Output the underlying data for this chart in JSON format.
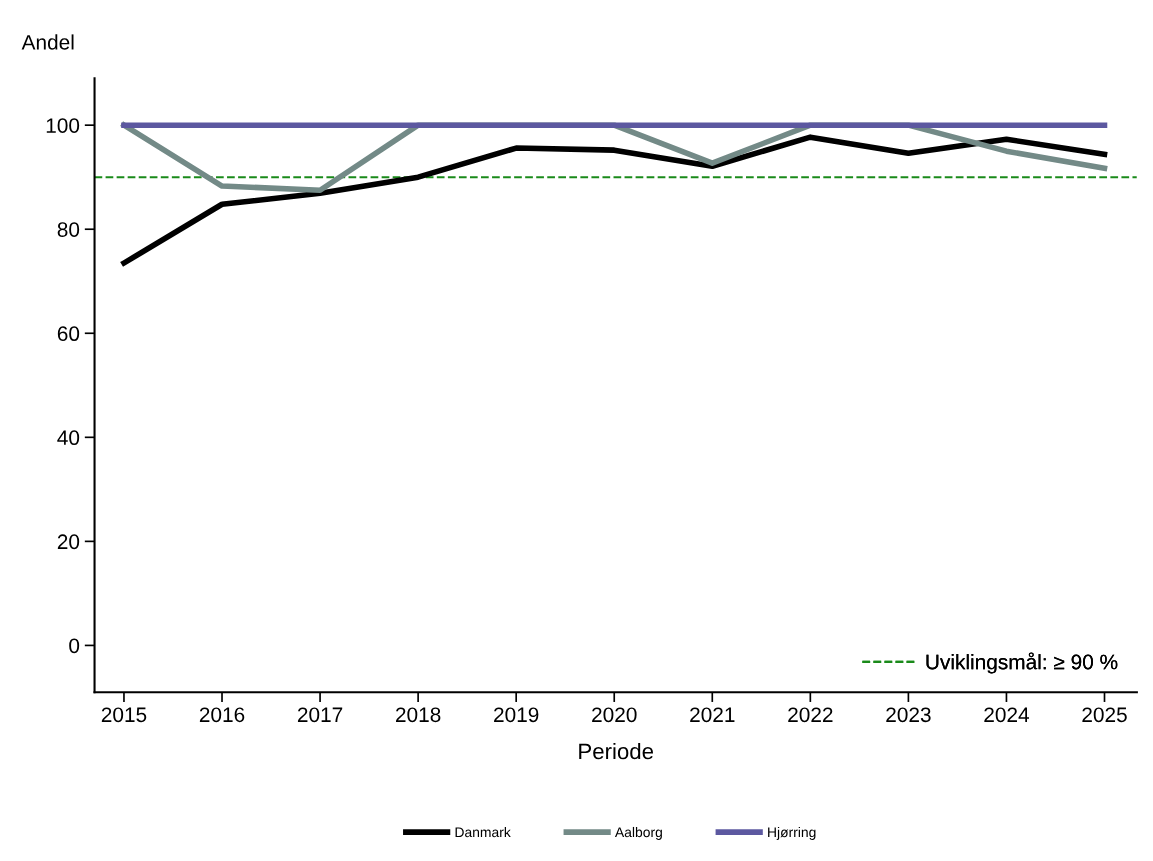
{
  "chart_data": {
    "type": "line",
    "ylabel": "Andel",
    "xlabel": "Periode",
    "x": [
      2015,
      2016,
      2017,
      2018,
      2019,
      2020,
      2021,
      2022,
      2023,
      2024,
      2025
    ],
    "series": [
      {
        "name": "Danmark",
        "color": "#000000",
        "values": [
          73.5,
          84.8,
          86.9,
          90,
          95.6,
          95.2,
          92.1,
          97.7,
          94.6,
          97.3,
          94.4
        ]
      },
      {
        "name": "Aalborg",
        "color": "#738a87",
        "values": [
          100,
          88.3,
          87.5,
          100,
          100,
          100,
          92.7,
          100,
          100,
          95,
          91.7
        ]
      },
      {
        "name": "Hjørring",
        "color": "#5c58a0",
        "values": [
          100,
          100,
          100,
          100,
          100,
          100,
          100,
          100,
          100,
          100,
          100
        ]
      }
    ],
    "xlim": [
      2014.7,
      2025.33
    ],
    "xticks": [
      2015,
      2016,
      2017,
      2018,
      2019,
      2020,
      2021,
      2022,
      2023,
      2024,
      2025
    ],
    "ylim": [
      -9,
      109
    ],
    "yticks": [
      0,
      20,
      40,
      60,
      80,
      100
    ],
    "ref_lines": [
      {
        "axis": "y",
        "value": 90,
        "label": "Uviklingsmål: ≥ 90 %",
        "color": "#1a8a1a",
        "line_style": "dashed"
      }
    ],
    "grid": false,
    "legend": "bottom",
    "marker": "none",
    "line_style": "solid"
  }
}
